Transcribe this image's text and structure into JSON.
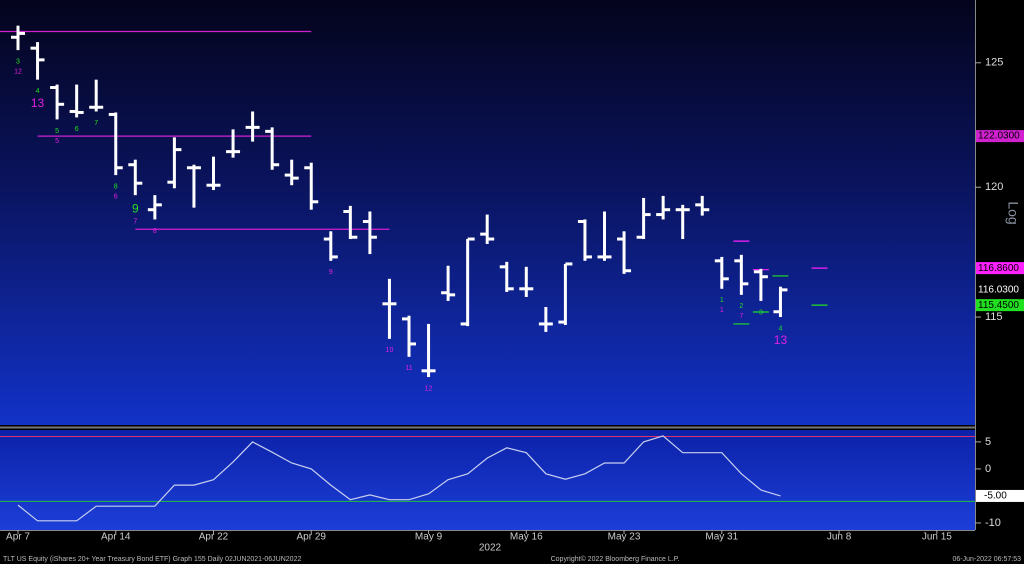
{
  "footer": {
    "left": "TLT US Equity (iShares 20+ Year Treasury Bond ETF) Graph 155  Daily 02JUN2021-06JUN2022",
    "center": "Copyright© 2022 Bloomberg Finance L.P.",
    "right": "06-Jun-2022 06:57:53"
  },
  "chart_data": [
    {
      "type": "ohlc",
      "scale": "log",
      "axis_label": "Log",
      "year_label": "2022",
      "color": "#ffffff",
      "categories": [
        "Apr 7",
        null,
        null,
        null,
        null,
        "Apr 14",
        null,
        null,
        null,
        null,
        "Apr 22",
        null,
        null,
        null,
        null,
        "Apr 29",
        null,
        null,
        null,
        null,
        null,
        "May 9",
        null,
        null,
        null,
        null,
        "May 16",
        null,
        null,
        null,
        null,
        "May 23",
        null,
        null,
        null,
        null,
        "May 31",
        null,
        null,
        null,
        null,
        null,
        "Jun 8",
        null,
        null,
        null,
        null,
        "Jun 15"
      ],
      "open": [
        126.05,
        125.6,
        123.99,
        123.02,
        123.19,
        122.9,
        120.89,
        119.12,
        120.2,
        120.77,
        120.08,
        121.41,
        122.38,
        122.22,
        120.48,
        120.77,
        117.98,
        119.05,
        118.66,
        115.5,
        114.93,
        112.99,
        115.92,
        114.74,
        118.17,
        116.91,
        116.07,
        114.74,
        114.81,
        118.66,
        117.29,
        117.98,
        118.05,
        118.93,
        119.12,
        119.31,
        117.14,
        117.14,
        116.72,
        115.2,
        null,
        null,
        null,
        null,
        null,
        null,
        null,
        null
      ],
      "high": [
        126.53,
        125.85,
        124.11,
        124.11,
        124.31,
        122.98,
        121.09,
        119.69,
        121.98,
        120.89,
        121.21,
        122.3,
        123.02,
        122.38,
        121.09,
        120.97,
        118.28,
        119.27,
        119.05,
        116.45,
        115.05,
        114.74,
        116.95,
        117.98,
        118.93,
        117.1,
        116.91,
        115.38,
        117.02,
        118.74,
        119.05,
        118.28,
        119.58,
        119.66,
        119.31,
        119.66,
        117.29,
        117.37,
        116.83,
        116.15,
        null,
        null,
        null,
        null,
        null,
        null,
        null,
        null
      ],
      "low": [
        125.52,
        124.31,
        122.7,
        122.78,
        123.02,
        120.48,
        119.69,
        118.74,
        119.96,
        119.2,
        119.89,
        121.17,
        121.81,
        120.69,
        120.08,
        119.12,
        117.14,
        117.98,
        117.4,
        114.18,
        113.51,
        112.76,
        115.61,
        114.66,
        117.79,
        115.95,
        115.76,
        114.44,
        114.7,
        117.14,
        117.14,
        116.64,
        117.98,
        118.74,
        117.98,
        118.89,
        116.07,
        115.84,
        115.61,
        115.0,
        null,
        null,
        null,
        null,
        null,
        null,
        null,
        null
      ],
      "close": [
        126.21,
        125.12,
        123.31,
        122.98,
        123.19,
        120.77,
        120.16,
        119.31,
        121.49,
        120.77,
        120.08,
        121.41,
        122.38,
        120.89,
        120.36,
        119.43,
        117.29,
        118.05,
        118.05,
        115.5,
        113.99,
        112.99,
        115.84,
        117.98,
        117.98,
        116.07,
        116.07,
        114.74,
        117.02,
        117.29,
        117.29,
        116.76,
        118.93,
        119.12,
        119.12,
        119.12,
        116.45,
        116.26,
        116.53,
        116.03,
        null,
        null,
        null,
        null,
        null,
        null,
        null,
        null
      ],
      "ylim": [
        111,
        127.6
      ],
      "yticks": [
        115,
        120,
        125
      ],
      "last_price_label": "116.0300",
      "levels": [
        {
          "value": 126.29,
          "color": "#d020d0"
        },
        {
          "value": 122.03,
          "color": "#d020d0",
          "label": "122.0300"
        },
        {
          "value": 118.36,
          "color": "#d020d0"
        },
        {
          "value": 117.9,
          "color": "#ff20ff"
        },
        {
          "value": 116.86,
          "color": "#ff20ff",
          "label": "116.8600"
        },
        {
          "value": 116.8,
          "color": "#ff20ff"
        },
        {
          "value": 116.56,
          "color": "#20e020"
        },
        {
          "value": 115.45,
          "color": "#20e020",
          "label": "115.4500"
        },
        {
          "value": 115.19,
          "color": "#20e020"
        },
        {
          "value": 114.74,
          "color": "#20e020"
        }
      ],
      "setup": {
        "color": "#20e020",
        "values": [
          "3",
          "4",
          "5",
          "6",
          "7",
          "8",
          "9",
          null,
          null,
          null,
          null,
          null,
          null,
          null,
          null,
          null,
          null,
          null,
          null,
          null,
          null,
          null,
          null,
          null,
          null,
          null,
          null,
          null,
          null,
          null,
          null,
          null,
          null,
          null,
          null,
          null,
          "1",
          "2",
          "3",
          "4",
          null,
          null,
          null,
          null,
          null,
          null,
          null,
          null
        ]
      },
      "countdown": {
        "color": "#e020e0",
        "values": [
          "12",
          "13",
          "5",
          null,
          null,
          "6",
          "7",
          "8",
          null,
          null,
          null,
          null,
          null,
          null,
          null,
          null,
          "9",
          null,
          null,
          "10",
          "11",
          "12",
          null,
          null,
          null,
          null,
          null,
          null,
          null,
          null,
          null,
          null,
          null,
          null,
          null,
          null,
          "1",
          "7",
          null,
          "13",
          null,
          null,
          null,
          null,
          null,
          null,
          null,
          null
        ]
      }
    },
    {
      "type": "line",
      "color": "#c8d0f0",
      "values": [
        -6.7,
        -9.6,
        -9.6,
        -9.6,
        -6.9,
        -6.9,
        -6.9,
        -6.9,
        -3.0,
        -3.0,
        -2.0,
        1.3,
        5.0,
        3.1,
        1.1,
        0,
        -3.0,
        -5.7,
        -4.8,
        -5.7,
        -5.7,
        -4.6,
        -2.0,
        -0.9,
        2.0,
        3.9,
        3.0,
        -0.9,
        -1.9,
        -0.9,
        1.1,
        1.1,
        5.0,
        6.1,
        3.0,
        3.0,
        3.0,
        -0.9,
        -3.9,
        -5.0,
        null,
        null,
        null,
        null,
        null,
        null,
        null,
        null
      ],
      "ylim": [
        -11.3,
        7.2
      ],
      "yticks": [
        5,
        0,
        -10
      ],
      "last_value_label": "-5.00",
      "levels": [
        {
          "value": 6,
          "color": "#e03070"
        },
        {
          "value": -6,
          "color": "#20c040"
        }
      ]
    }
  ]
}
